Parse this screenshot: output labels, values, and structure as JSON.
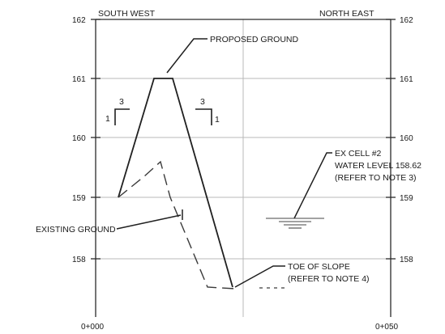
{
  "headers": {
    "left": "SOUTH WEST",
    "right": "NORTH EAST"
  },
  "left_axis_ticks": [
    "162",
    "161",
    "160",
    "159",
    "158"
  ],
  "right_axis_ticks": [
    "162",
    "161",
    "160",
    "159",
    "158"
  ],
  "bottom_ticks": [
    "0+000",
    "0+050"
  ],
  "labels": {
    "proposed_ground": "PROPOSED GROUND",
    "existing_ground": "EXISTING GROUND",
    "ex_cell": [
      "EX CELL #2",
      "WATER LEVEL 158.62",
      "(REFER TO NOTE 3)"
    ],
    "toe_of_slope": [
      "TOE OF SLOPE",
      "(REFER TO NOTE 4)"
    ]
  },
  "slope_left": {
    "run": "3",
    "rise": "1"
  },
  "slope_right": {
    "run": "3",
    "rise": "1"
  }
}
